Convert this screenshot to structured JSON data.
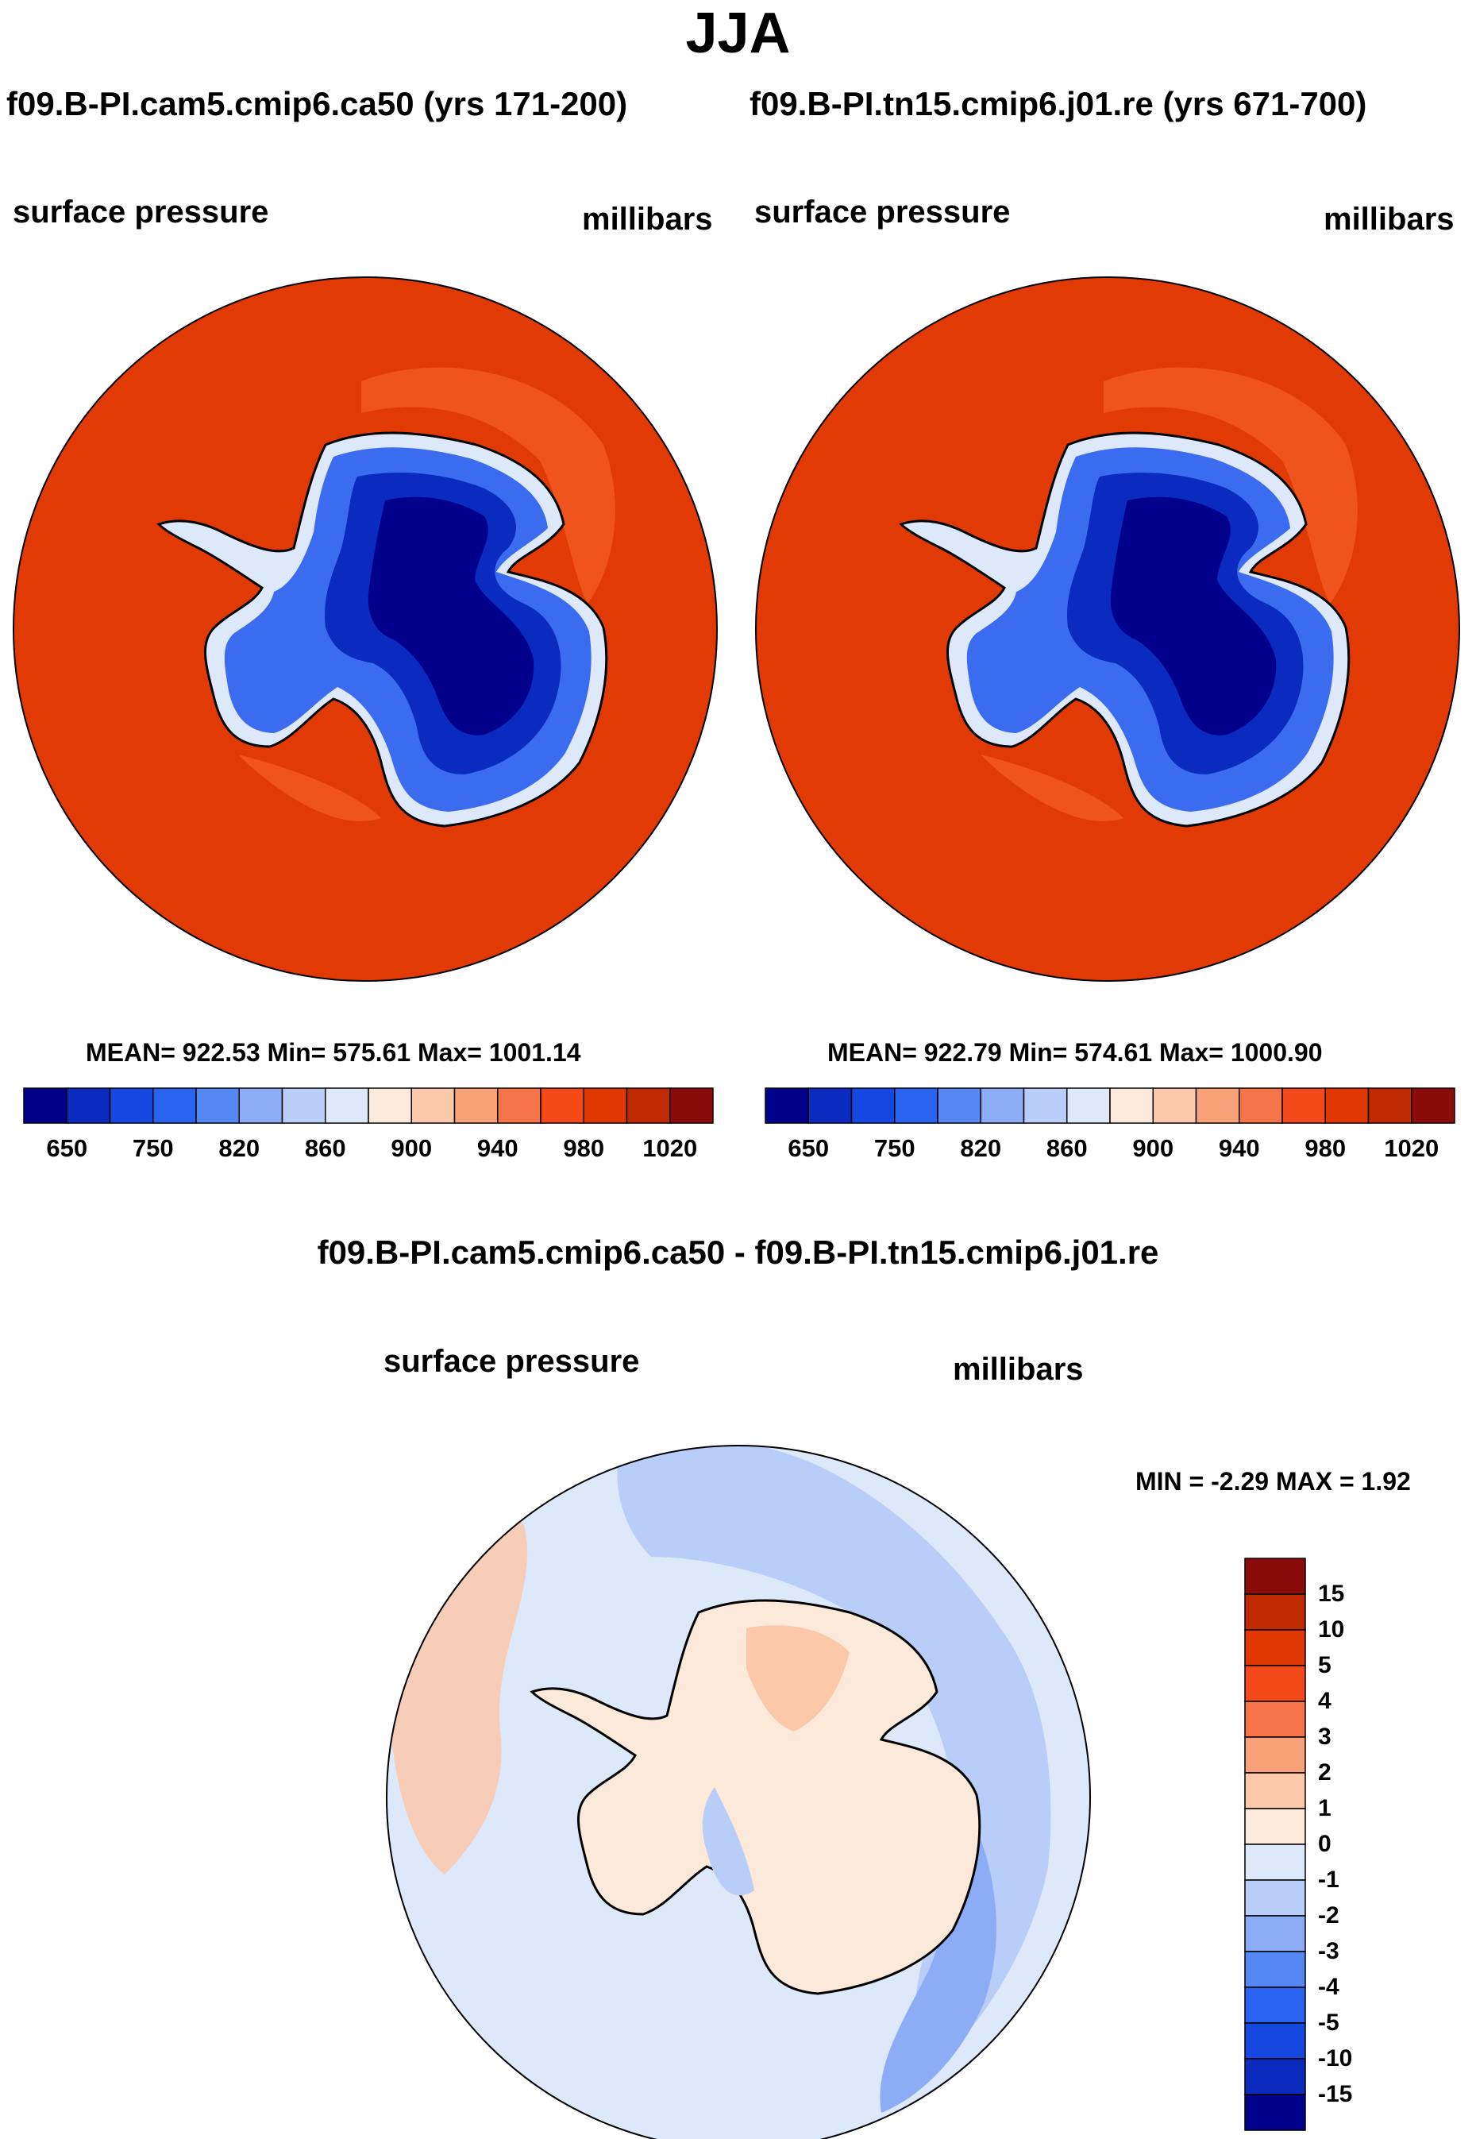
{
  "title": "JJA",
  "panels": [
    {
      "case_title": "f09.B-PI.cam5.cmip6.ca50 (yrs 171-200)",
      "variable": "surface pressure",
      "units": "millibars",
      "stats": "MEAN= 922.53  Min= 575.61  Max= 1001.14"
    },
    {
      "case_title": "f09.B-PI.tn15.cmip6.j01.re (yrs 671-700)",
      "variable": "surface pressure",
      "units": "millibars",
      "stats": "MEAN= 922.79  Min= 574.61  Max= 1000.90"
    }
  ],
  "main_colorbar": {
    "ticks": [
      "650",
      "750",
      "820",
      "860",
      "900",
      "940",
      "980",
      "1020"
    ],
    "colors": [
      "#00008b",
      "#0a2bbd",
      "#1548e0",
      "#2a63f0",
      "#5588f5",
      "#8cacf5",
      "#b8cdf7",
      "#dde8fa",
      "#fde9d9",
      "#fbc8aa",
      "#f9a27a",
      "#f7744a",
      "#f44a1a",
      "#e03800",
      "#c02a00",
      "#8b0a0a"
    ]
  },
  "difference": {
    "title": "f09.B-PI.cam5.cmip6.ca50 - f09.B-PI.tn15.cmip6.j01.re",
    "variable": "surface pressure",
    "units": "millibars",
    "stats": "MIN =  -2.29 MAX =   1.92",
    "colorbar_ticks": [
      "15",
      "10",
      "5",
      "4",
      "3",
      "2",
      "1",
      "0",
      "-1",
      "-2",
      "-3",
      "-4",
      "-5",
      "-10",
      "-15"
    ],
    "colorbar_colors": [
      "#8b0a0a",
      "#c02a00",
      "#e03800",
      "#f44a1a",
      "#f7744a",
      "#f9a27a",
      "#fbc8aa",
      "#fde9d9",
      "#dde8fa",
      "#b8cdf7",
      "#8cacf5",
      "#5588f5",
      "#2a63f0",
      "#1548e0",
      "#0a2bbd",
      "#00008b"
    ]
  }
}
